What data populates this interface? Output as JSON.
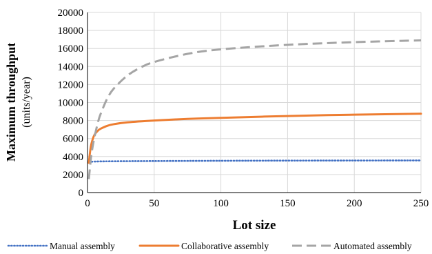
{
  "chart_data": {
    "type": "line",
    "title": "",
    "xlabel": "Lot size",
    "ylabel": "Maximum throughput",
    "ylabel_unit": "(units/year)",
    "xlim": [
      0,
      250
    ],
    "ylim": [
      0,
      20000
    ],
    "xticks": [
      0,
      50,
      100,
      150,
      200,
      250
    ],
    "yticks": [
      0,
      2000,
      4000,
      6000,
      8000,
      10000,
      12000,
      14000,
      16000,
      18000,
      20000
    ],
    "grid": true,
    "legend_position": "bottom",
    "series": [
      {
        "name": "Manual assembly",
        "color": "#4472c4",
        "style": "dotted",
        "x": [
          1,
          2,
          5,
          10,
          25,
          50,
          100,
          150,
          200,
          250
        ],
        "y": [
          3370,
          3410,
          3440,
          3460,
          3480,
          3500,
          3530,
          3550,
          3560,
          3570
        ]
      },
      {
        "name": "Collaborative assembly",
        "color": "#ed7d31",
        "style": "solid",
        "x": [
          1,
          2,
          3,
          5,
          8,
          10,
          15,
          20,
          30,
          50,
          75,
          100,
          150,
          200,
          250
        ],
        "y": [
          3300,
          4600,
          5450,
          6350,
          6900,
          7100,
          7420,
          7600,
          7800,
          8000,
          8180,
          8300,
          8500,
          8650,
          8750
        ]
      },
      {
        "name": "Automated assembly",
        "color": "#a5a5a5",
        "style": "dashed",
        "x": [
          1,
          2,
          3,
          5,
          8,
          10,
          15,
          20,
          30,
          40,
          50,
          75,
          100,
          150,
          200,
          250
        ],
        "y": [
          1500,
          3000,
          4300,
          6000,
          7900,
          8800,
          10500,
          11600,
          13000,
          13900,
          14500,
          15400,
          15900,
          16400,
          16700,
          16900
        ]
      }
    ]
  }
}
